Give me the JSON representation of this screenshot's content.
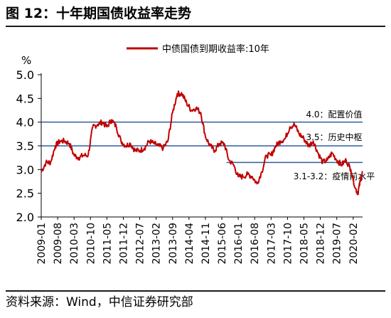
{
  "figure": {
    "title": "图 12：十年期国债收益率走势",
    "source": "资料来源：Wind，中信证券研究部"
  },
  "colors": {
    "series": "#c00000",
    "refline": "#2e5e9e",
    "axis": "#000000"
  },
  "chart_data": {
    "type": "line",
    "unit_label": "%",
    "ylim": [
      2.0,
      5.0
    ],
    "y_ticks": [
      "5.0",
      "4.5",
      "4.0",
      "3.5",
      "3.0",
      "2.5",
      "2.0"
    ],
    "x_ticks": [
      "2009-01",
      "2009-08",
      "2010-03",
      "2010-10",
      "2011-05",
      "2011-12",
      "2012-07",
      "2013-02",
      "2013-09",
      "2014-04",
      "2014-11",
      "2015-06",
      "2016-01",
      "2016-08",
      "2017-03",
      "2017-10",
      "2018-05",
      "2018-12",
      "2019-07",
      "2020-02"
    ],
    "grid": false,
    "legend": "top-center",
    "series": [
      {
        "name": "中债国债到期收益率:10年",
        "x": [
          "2009-01",
          "2009-03",
          "2009-05",
          "2009-07",
          "2009-09",
          "2009-11",
          "2010-01",
          "2010-03",
          "2010-05",
          "2010-07",
          "2010-09",
          "2010-11",
          "2011-01",
          "2011-03",
          "2011-05",
          "2011-07",
          "2011-09",
          "2011-11",
          "2012-01",
          "2012-03",
          "2012-05",
          "2012-07",
          "2012-09",
          "2012-11",
          "2013-01",
          "2013-03",
          "2013-05",
          "2013-07",
          "2013-09",
          "2013-11",
          "2014-01",
          "2014-03",
          "2014-05",
          "2014-07",
          "2014-09",
          "2014-11",
          "2015-01",
          "2015-03",
          "2015-05",
          "2015-07",
          "2015-09",
          "2015-11",
          "2016-01",
          "2016-03",
          "2016-05",
          "2016-07",
          "2016-09",
          "2016-11",
          "2017-01",
          "2017-03",
          "2017-05",
          "2017-07",
          "2017-09",
          "2017-11",
          "2018-01",
          "2018-03",
          "2018-05",
          "2018-07",
          "2018-09",
          "2018-11",
          "2019-01",
          "2019-03",
          "2019-05",
          "2019-07",
          "2019-09",
          "2019-11",
          "2020-01",
          "2020-03",
          "2020-04",
          "2020-05",
          "2020-06"
        ],
        "y": [
          2.95,
          3.15,
          3.15,
          3.5,
          3.6,
          3.6,
          3.55,
          3.3,
          3.25,
          3.3,
          3.3,
          3.9,
          3.95,
          4.0,
          3.9,
          4.05,
          3.9,
          3.6,
          3.5,
          3.55,
          3.4,
          3.4,
          3.45,
          3.6,
          3.55,
          3.5,
          3.45,
          3.6,
          4.2,
          4.6,
          4.6,
          4.4,
          4.25,
          4.3,
          4.2,
          3.7,
          3.5,
          3.4,
          3.55,
          3.55,
          3.2,
          3.1,
          2.85,
          2.85,
          2.9,
          2.85,
          2.7,
          2.95,
          3.3,
          3.3,
          3.5,
          3.6,
          3.65,
          3.9,
          3.95,
          3.75,
          3.65,
          3.5,
          3.6,
          3.35,
          3.15,
          3.2,
          3.35,
          3.2,
          3.1,
          3.2,
          3.0,
          2.6,
          2.5,
          2.75,
          2.95
        ]
      }
    ],
    "reference_lines": [
      {
        "value": 4.0,
        "label": "4.0：配置价值",
        "from": "2009-01"
      },
      {
        "value": 3.5,
        "label": "3.5：历史中枢",
        "from": "2009-01"
      },
      {
        "value": 3.15,
        "label": "3.1-3.2：疫情前水平",
        "from": "2015-08"
      }
    ]
  }
}
